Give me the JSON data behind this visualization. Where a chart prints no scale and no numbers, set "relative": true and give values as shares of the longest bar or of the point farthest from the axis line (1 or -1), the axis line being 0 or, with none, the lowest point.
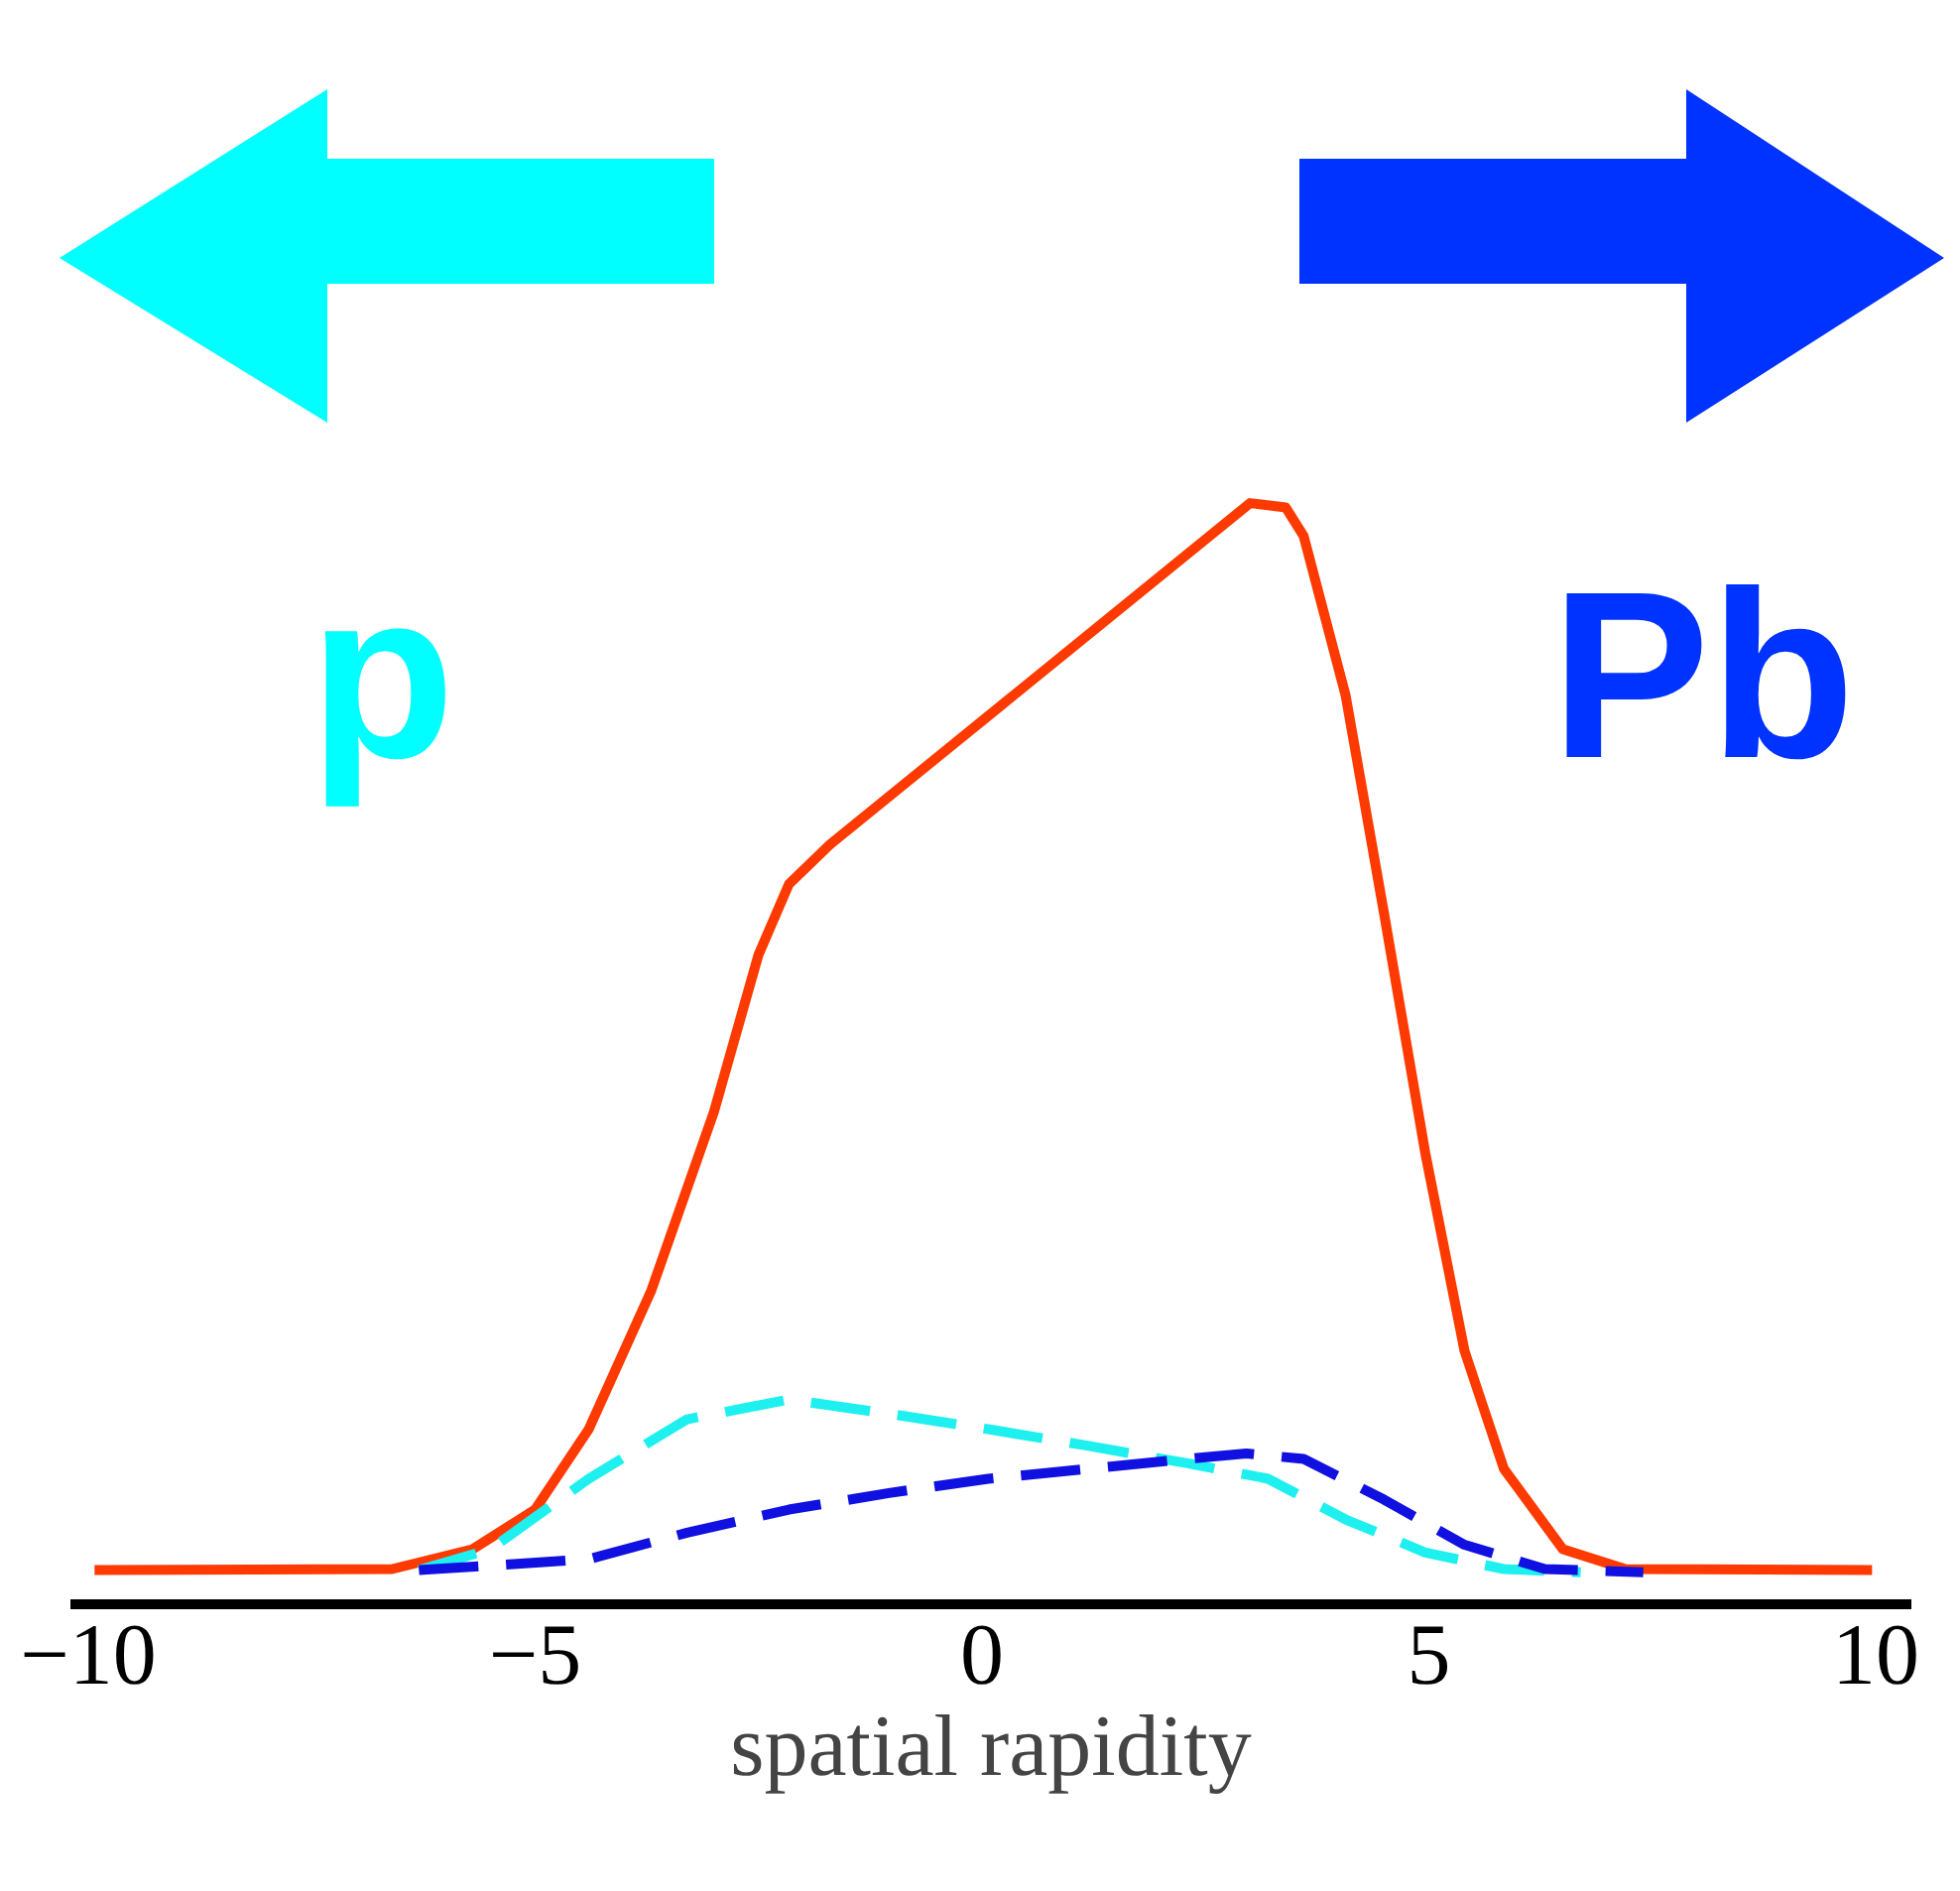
{
  "chart_data": {
    "type": "line",
    "relative": true,
    "xlabel": "spatial rapidity",
    "xlim": [
      -10.2,
      10.4
    ],
    "xticks": [
      {
        "value": -10,
        "label": "−10"
      },
      {
        "value": -5,
        "label": "−5"
      },
      0,
      5,
      10
    ],
    "grid": false,
    "annotations": [
      "p",
      "Pb"
    ],
    "series": [
      {
        "color": "#ff3a00",
        "line_style": "solid",
        "x": [
          -9.93,
          -6.6,
          -5.7,
          -5.0,
          -4.4,
          -3.7,
          -3.0,
          -2.5,
          -2.16,
          -1.7,
          3.0,
          3.4,
          3.6,
          4.07,
          4.5,
          4.96,
          5.4,
          5.84,
          6.5,
          7.2,
          9.96
        ],
        "values": [
          0.031,
          0.032,
          0.05,
          0.086,
          0.159,
          0.285,
          0.447,
          0.59,
          0.654,
          0.69,
          1.0,
          0.996,
          0.97,
          0.825,
          0.627,
          0.41,
          0.23,
          0.123,
          0.05,
          0.032,
          0.031
        ]
      },
      {
        "color": "#1ef0f0",
        "line_style": "dashed",
        "x": [
          -6.3,
          -5.5,
          -4.4,
          -3.3,
          -2.16,
          -1.04,
          0.07,
          1.18,
          2.3,
          3.2,
          4.07,
          4.96,
          5.84,
          6.7
        ],
        "values": [
          0.031,
          0.05,
          0.114,
          0.168,
          0.186,
          0.173,
          0.159,
          0.144,
          0.128,
          0.114,
          0.077,
          0.047,
          0.032,
          0.029
        ]
      },
      {
        "color": "#1010e0",
        "line_style": "dashed",
        "x": [
          -6.3,
          -4.4,
          -3.3,
          -2.16,
          -1.04,
          0.07,
          1.18,
          2.3,
          2.96,
          3.6,
          4.5,
          5.4,
          6.3,
          7.4
        ],
        "values": [
          0.031,
          0.041,
          0.065,
          0.086,
          0.101,
          0.114,
          0.123,
          0.132,
          0.137,
          0.132,
          0.095,
          0.054,
          0.032,
          0.029
        ]
      }
    ]
  }
}
